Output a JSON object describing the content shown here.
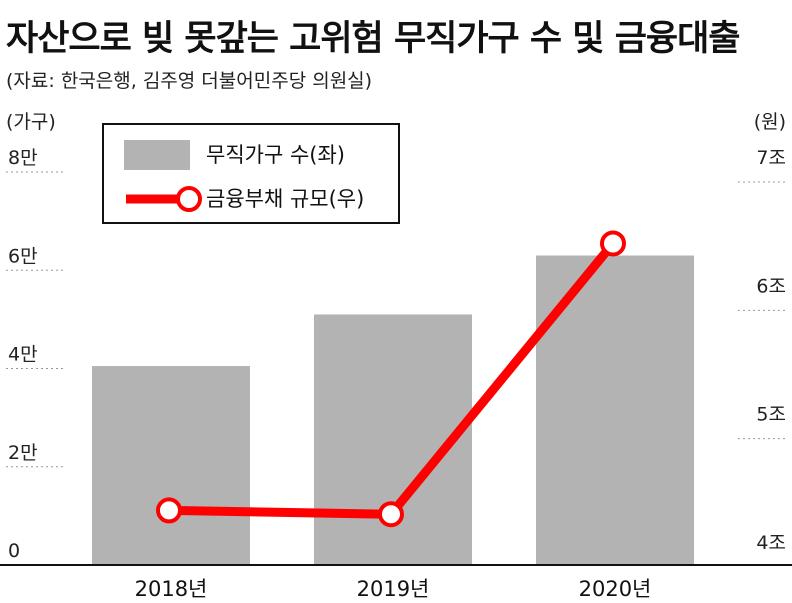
{
  "header": {
    "title": "자산으로 빚 못갚는 고위험 무직가구 수 및 금융대출",
    "source": "(자료: 한국은행, 김주영 더불어민주당 의원실)"
  },
  "chart_data": {
    "type": "bar",
    "categories": [
      "2018년",
      "2019년",
      "2020년"
    ],
    "series": [
      {
        "name": "무직가구 수(좌)",
        "kind": "bar",
        "axis": "left",
        "values": [
          40500,
          51000,
          63000
        ]
      },
      {
        "name": "금융부채 규모(우)",
        "kind": "line",
        "axis": "right",
        "values": [
          4.41,
          4.38,
          6.49
        ]
      }
    ],
    "left_axis": {
      "unit": "(가구)",
      "ylim": [
        0,
        80000
      ],
      "ticks": [
        "0",
        "2만",
        "4만",
        "6만",
        "8만"
      ],
      "tick_values": [
        0,
        20000,
        40000,
        60000,
        80000
      ]
    },
    "right_axis": {
      "unit": "(원)",
      "ylim": [
        4,
        7.2
      ],
      "ticks": [
        "4조",
        "5조",
        "6조",
        "7조"
      ],
      "tick_values": [
        4,
        5,
        6,
        7
      ]
    },
    "grid": true,
    "legend": "top-left",
    "colors": {
      "bar": "#b3b3b3",
      "line": "#ff0000",
      "grid": "#999999"
    }
  }
}
